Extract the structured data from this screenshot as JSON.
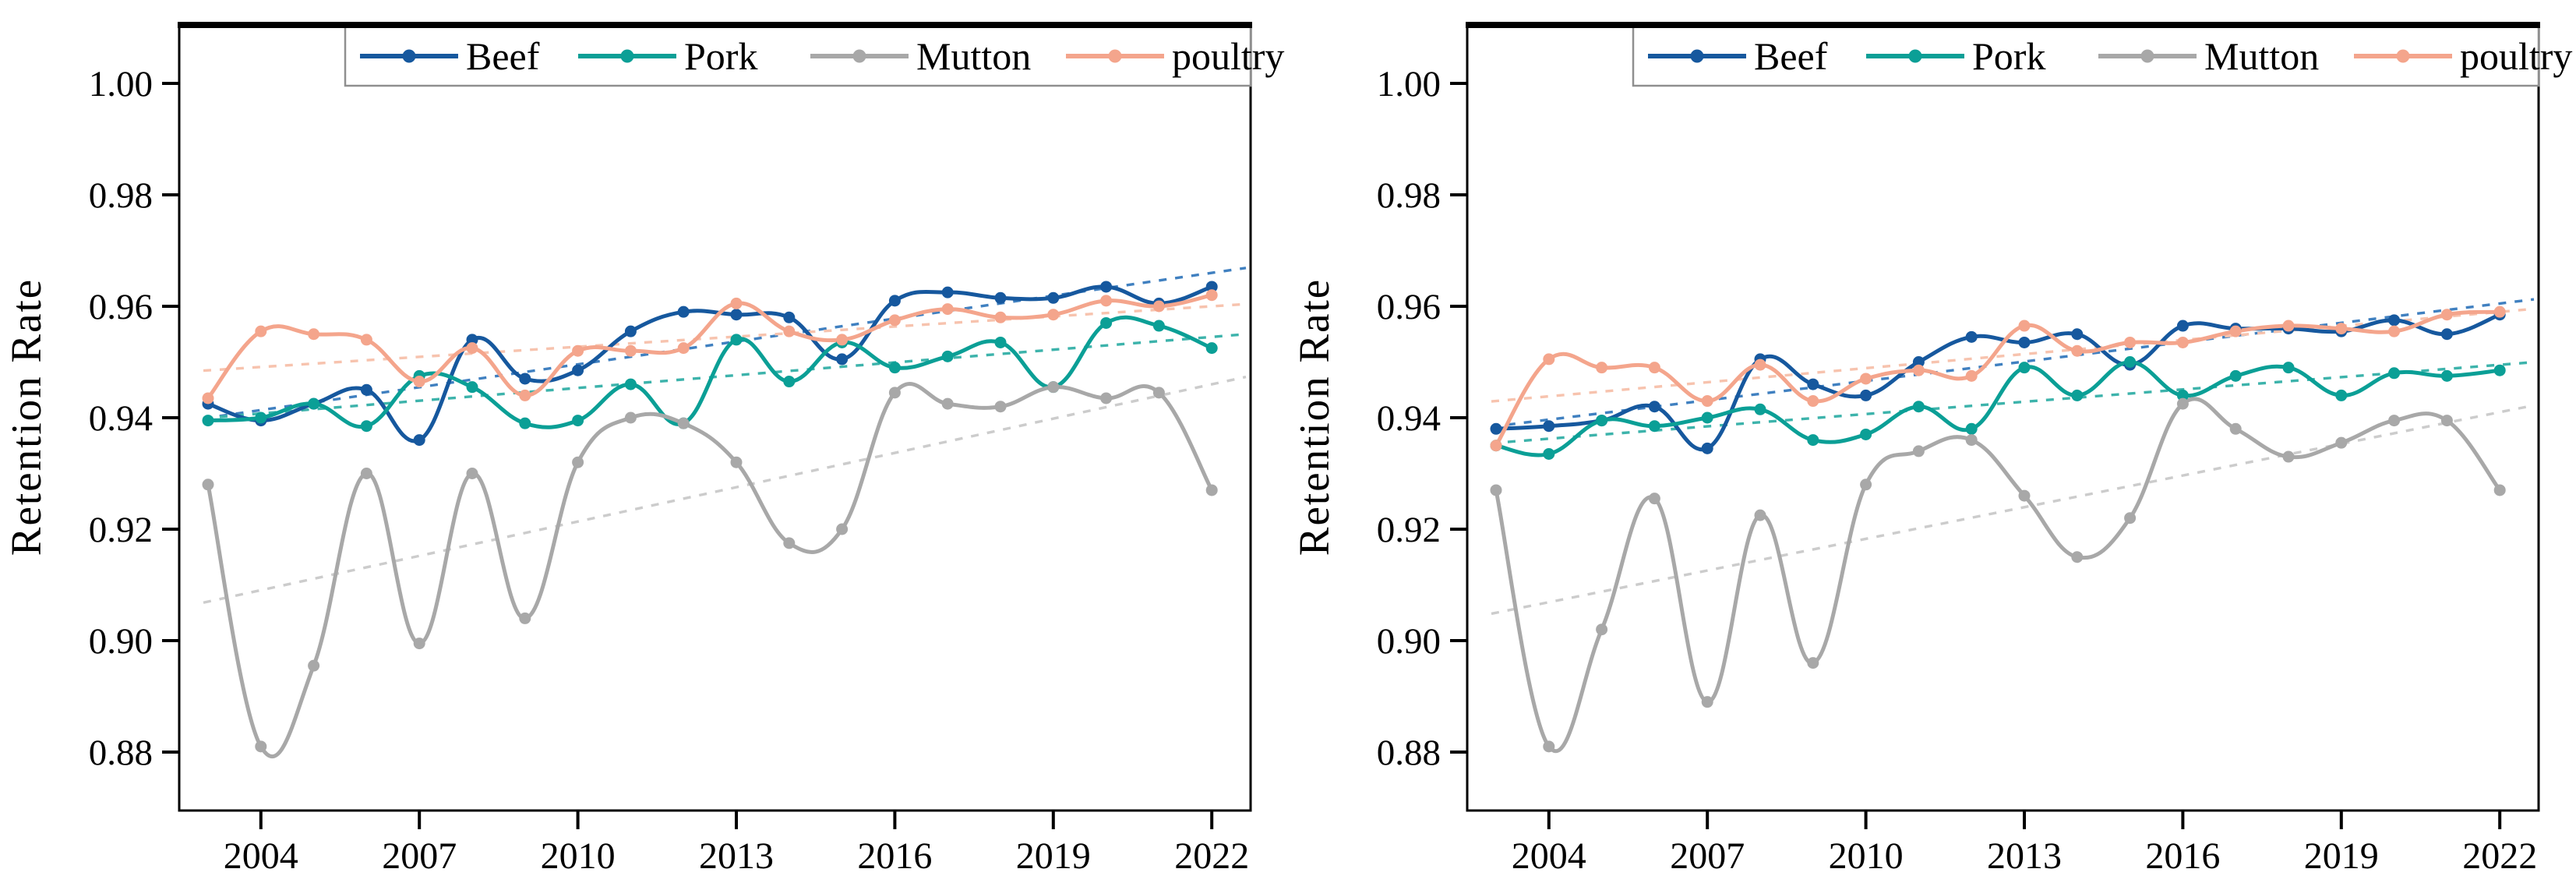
{
  "figure": {
    "ylabel": "Retention Rate",
    "background": "#ffffff",
    "axis_color": "#000000",
    "legend_border_color": "#8f8f8f",
    "legend_labels": [
      "Beef",
      "Pork",
      "Mutton",
      "poultry"
    ]
  },
  "chart_data": [
    {
      "id": "left",
      "type": "line",
      "title": "",
      "xlabel": "",
      "ylabel": "Retention Rate",
      "grid": false,
      "legend_position": "top",
      "x": [
        2003,
        2004,
        2005,
        2006,
        2007,
        2008,
        2009,
        2010,
        2011,
        2012,
        2013,
        2014,
        2015,
        2016,
        2017,
        2018,
        2019,
        2020,
        2021,
        2022
      ],
      "xticks": [
        2004,
        2007,
        2010,
        2013,
        2016,
        2019,
        2022
      ],
      "yticks": [
        0.88,
        0.9,
        0.92,
        0.94,
        0.96,
        0.98,
        1.0
      ],
      "ylim": [
        0.869,
        1.011
      ],
      "series": [
        {
          "name": "Beef",
          "color": "#16589e",
          "trend_color": "#4080c0",
          "values": [
            0.9425,
            0.9395,
            0.9425,
            0.945,
            0.936,
            0.954,
            0.947,
            0.9485,
            0.9555,
            0.959,
            0.9585,
            0.958,
            0.9505,
            0.961,
            0.9625,
            0.9615,
            0.9615,
            0.9635,
            0.9605,
            0.9635
          ],
          "trend": [
            0.94,
            0.966
          ]
        },
        {
          "name": "Pork",
          "color": "#0b9f96",
          "trend_color": "#3db3ab",
          "values": [
            0.9395,
            0.94,
            0.9425,
            0.9385,
            0.9475,
            0.9455,
            0.939,
            0.9395,
            0.946,
            0.939,
            0.954,
            0.9465,
            0.9535,
            0.949,
            0.951,
            0.9535,
            0.9455,
            0.957,
            0.9565,
            0.9525
          ],
          "trend": [
            0.94,
            0.9545
          ]
        },
        {
          "name": "Mutton",
          "color": "#a8a8a8",
          "trend_color": "#cccccc",
          "values": [
            0.928,
            0.881,
            0.8955,
            0.93,
            0.8995,
            0.93,
            0.904,
            0.932,
            0.94,
            0.939,
            0.932,
            0.9175,
            0.92,
            0.9445,
            0.9425,
            0.942,
            0.9455,
            0.9435,
            0.9445,
            0.927
          ],
          "trend": [
            0.907,
            0.946
          ]
        },
        {
          "name": "poultry",
          "color": "#f4a58c",
          "trend_color": "#f7c3ae",
          "values": [
            0.9435,
            0.9555,
            0.955,
            0.954,
            0.9465,
            0.9525,
            0.944,
            0.952,
            0.952,
            0.9525,
            0.9605,
            0.9555,
            0.954,
            0.9575,
            0.9595,
            0.958,
            0.9585,
            0.961,
            0.96,
            0.962
          ],
          "trend": [
            0.9485,
            0.96
          ]
        }
      ]
    },
    {
      "id": "right",
      "type": "line",
      "title": "",
      "xlabel": "",
      "ylabel": "Retention Rate",
      "grid": false,
      "legend_position": "top",
      "x": [
        2003,
        2004,
        2005,
        2006,
        2007,
        2008,
        2009,
        2010,
        2011,
        2012,
        2013,
        2014,
        2015,
        2016,
        2017,
        2018,
        2019,
        2020,
        2021,
        2022
      ],
      "xticks": [
        2004,
        2007,
        2010,
        2013,
        2016,
        2019,
        2022
      ],
      "yticks": [
        0.88,
        0.9,
        0.92,
        0.94,
        0.96,
        0.98,
        1.0
      ],
      "ylim": [
        0.869,
        1.011
      ],
      "series": [
        {
          "name": "Beef",
          "color": "#16589e",
          "trend_color": "#4080c0",
          "values": [
            0.938,
            0.9385,
            0.9395,
            0.942,
            0.9345,
            0.9505,
            0.946,
            0.944,
            0.95,
            0.9545,
            0.9535,
            0.955,
            0.9495,
            0.9565,
            0.956,
            0.956,
            0.9555,
            0.9575,
            0.955,
            0.9585
          ],
          "trend": [
            0.9385,
            0.9605
          ]
        },
        {
          "name": "Pork",
          "color": "#0b9f96",
          "trend_color": "#3db3ab",
          "values": [
            0.935,
            0.9335,
            0.9395,
            0.9385,
            0.94,
            0.9415,
            0.936,
            0.937,
            0.942,
            0.938,
            0.949,
            0.944,
            0.95,
            0.944,
            0.9475,
            0.949,
            0.944,
            0.948,
            0.9475,
            0.9485
          ],
          "trend": [
            0.9355,
            0.9495
          ]
        },
        {
          "name": "Mutton",
          "color": "#a8a8a8",
          "trend_color": "#cccccc",
          "values": [
            0.927,
            0.881,
            0.902,
            0.9255,
            0.889,
            0.9225,
            0.896,
            0.928,
            0.934,
            0.936,
            0.926,
            0.915,
            0.922,
            0.9425,
            0.938,
            0.933,
            0.9355,
            0.9395,
            0.9395,
            0.927
          ],
          "trend": [
            0.905,
            0.941
          ]
        },
        {
          "name": "poultry",
          "color": "#f4a58c",
          "trend_color": "#f7c3ae",
          "values": [
            0.935,
            0.9505,
            0.949,
            0.949,
            0.943,
            0.9495,
            0.943,
            0.947,
            0.9485,
            0.9475,
            0.9565,
            0.952,
            0.9535,
            0.9535,
            0.9555,
            0.9565,
            0.956,
            0.9555,
            0.9585,
            0.959
          ],
          "trend": [
            0.943,
            0.959
          ]
        }
      ]
    }
  ]
}
